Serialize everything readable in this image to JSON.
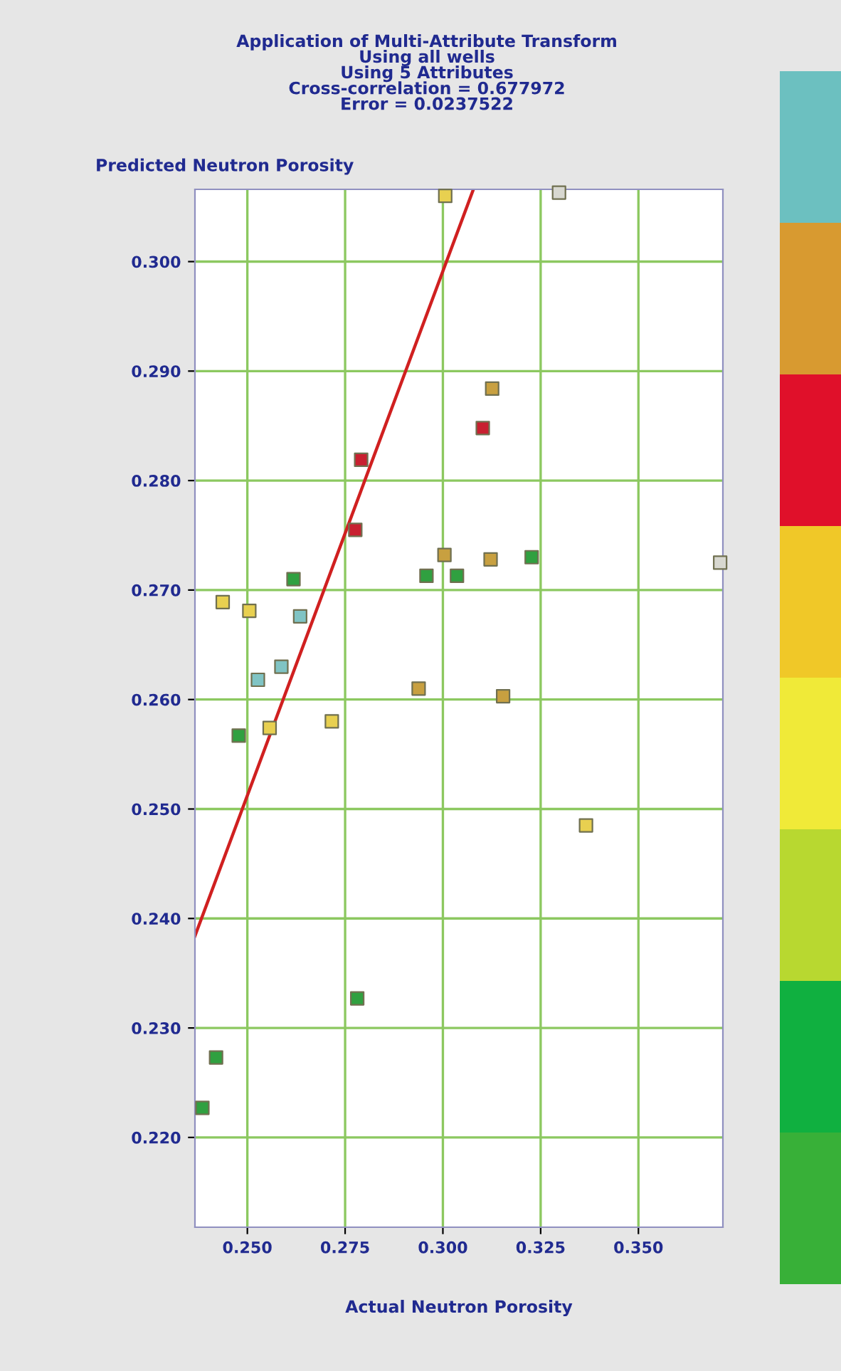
{
  "chart_data": {
    "type": "scatter",
    "title": "Application of Multi-Attribute Transform\nUsing all wells\nUsing 5 Attributes\nCross-correlation = 0.677972\nError = 0.0237522",
    "xlabel": "Actual Neutron Porosity",
    "ylabel": "Predicted Neutron Porosity",
    "xlim": [
      0.2366,
      0.3716
    ],
    "ylim": [
      0.2118,
      0.3066
    ],
    "xticks": [
      {
        "value": 0.25,
        "label": "0.250"
      },
      {
        "value": 0.275,
        "label": "0.275"
      },
      {
        "value": 0.3,
        "label": "0.300"
      },
      {
        "value": 0.325,
        "label": "0.325"
      },
      {
        "value": 0.35,
        "label": "0.350"
      }
    ],
    "yticks": [
      {
        "value": 0.22,
        "label": "0.220"
      },
      {
        "value": 0.23,
        "label": "0.230"
      },
      {
        "value": 0.24,
        "label": "0.240"
      },
      {
        "value": 0.25,
        "label": "0.250"
      },
      {
        "value": 0.26,
        "label": "0.260"
      },
      {
        "value": 0.27,
        "label": "0.270"
      },
      {
        "value": 0.28,
        "label": "0.280"
      },
      {
        "value": 0.29,
        "label": "0.290"
      },
      {
        "value": 0.3,
        "label": "0.300"
      }
    ],
    "grid": true,
    "marker": "square",
    "series": [
      {
        "color": "#e8d050",
        "x": [
          0.3006,
          0.2437,
          0.2505,
          0.2716,
          0.3366,
          0.2557
        ],
        "values": [
          0.306,
          0.2689,
          0.2681,
          0.258,
          0.2485,
          0.2574
        ]
      },
      {
        "color": "#c8a040",
        "x": [
          0.3126,
          0.3004,
          0.3122,
          0.2938,
          0.3154
        ],
        "values": [
          0.2884,
          0.2732,
          0.2728,
          0.261,
          0.2603
        ]
      },
      {
        "color": "#c82030",
        "x": [
          0.3102,
          0.2791,
          0.2776
        ],
        "values": [
          0.2848,
          0.2819,
          0.2755
        ]
      },
      {
        "color": "#30a040",
        "x": [
          0.3227,
          0.2958,
          0.3036,
          0.2618,
          0.2478,
          0.2781,
          0.242,
          0.2385
        ],
        "values": [
          0.273,
          0.2713,
          0.2713,
          0.271,
          0.2567,
          0.2327,
          0.2273,
          0.2227
        ]
      },
      {
        "color": "#80c4c4",
        "x": [
          0.2635,
          0.2527,
          0.2587
        ],
        "values": [
          0.2676,
          0.2618,
          0.263
        ]
      },
      {
        "color": "#d8d8d0",
        "x": [
          0.3297,
          0.3709
        ],
        "values": [
          0.3063,
          0.2725
        ]
      },
      {
        "type": "line",
        "color": "#d02020",
        "marker": "none",
        "x": [
          0.2366,
          0.3078
        ],
        "values": [
          0.2384,
          0.3066
        ]
      }
    ]
  }
}
